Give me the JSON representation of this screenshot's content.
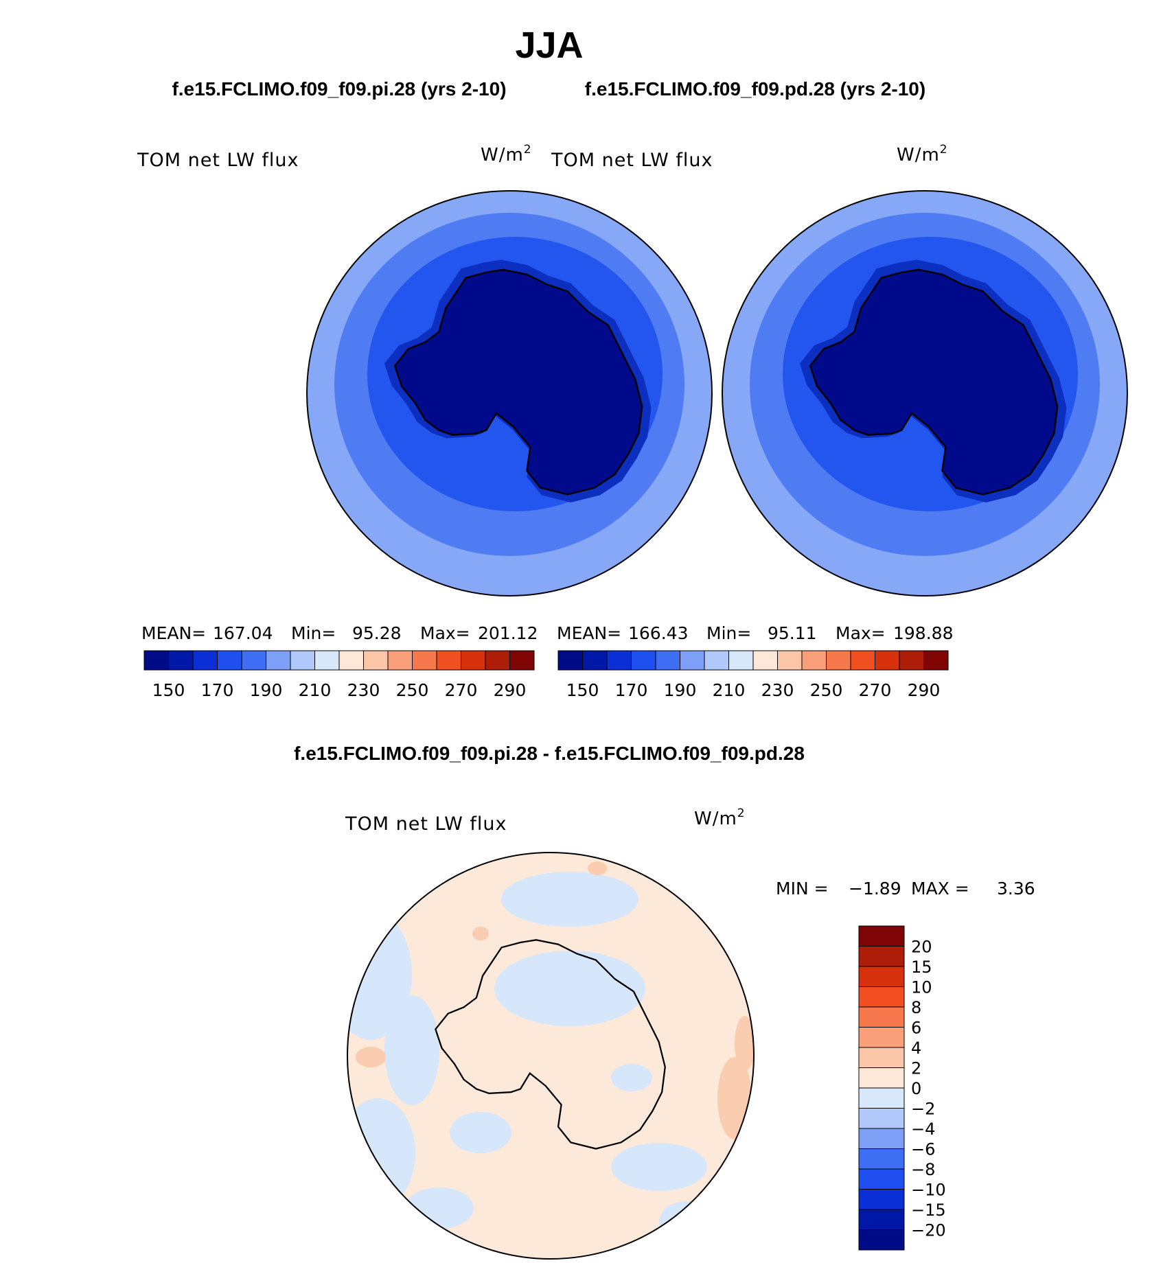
{
  "main_title": "JJA",
  "case_titles": {
    "left": "f.e15.FCLIMO.f09_f09.pi.28 (yrs 2-10)",
    "right": "f.e15.FCLIMO.f09_f09.pd.28 (yrs 2-10)"
  },
  "diff_title": "f.e15.FCLIMO.f09_f09.pi.28 - f.e15.FCLIMO.f09_f09.pd.28",
  "units": {
    "base": "W/m",
    "exp": "2"
  },
  "chart_data": [
    {
      "type": "heatmap",
      "name": "pi-panel",
      "title": "TOM net LW flux",
      "mean_label": "MEAN=",
      "mean": "167.04",
      "min_label": "Min=",
      "min": "95.28",
      "max_label": "Max=",
      "max": "201.12",
      "colorbar_levels": [
        150,
        170,
        190,
        210,
        230,
        250,
        270,
        290
      ]
    },
    {
      "type": "heatmap",
      "name": "pd-panel",
      "title": "TOM net LW flux",
      "mean_label": "MEAN=",
      "mean": "166.43",
      "min_label": "Min=",
      "min": "95.11",
      "max_label": "Max=",
      "max": "198.88",
      "colorbar_levels": [
        150,
        170,
        190,
        210,
        230,
        250,
        270,
        290
      ]
    },
    {
      "type": "heatmap",
      "name": "difference-panel",
      "title": "TOM net LW flux",
      "min_label": "MIN =",
      "min": "−1.89",
      "max_label": "MAX =",
      "max": "3.36",
      "colorbar_levels": [
        "20",
        "15",
        "10",
        "8",
        "6",
        "4",
        "2",
        "0",
        "−2",
        "−4",
        "−6",
        "−8",
        "−10",
        "−15",
        "−20"
      ]
    }
  ],
  "colors": {
    "palette16": [
      "#000b87",
      "#0018a8",
      "#0a2fd6",
      "#1f4ff0",
      "#3d6ef3",
      "#7d9ff6",
      "#b1c8fa",
      "#d8e8fb",
      "#fce7d8",
      "#fbc6a8",
      "#f9a07a",
      "#f8784d",
      "#f14e22",
      "#d6300c",
      "#ad1d08",
      "#7f0505"
    ],
    "ocean_outer": "#86a8f7",
    "ocean_mid": "#4f7cf2",
    "ocean_inner": "#2356ee",
    "shelf": "#0c2fbf",
    "ice_sheet": "#000a8a",
    "diff_base": "#fde9d9",
    "diff_neg": "#d6e6fb",
    "diff_pos": "#fbcdb0",
    "diff_blue": "#b7cbf7"
  }
}
